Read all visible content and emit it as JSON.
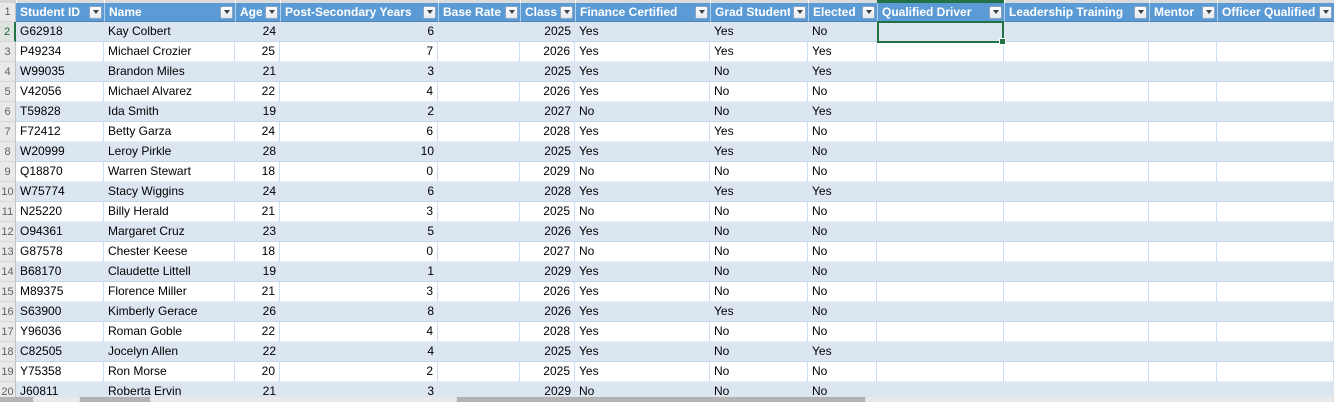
{
  "app": {
    "title": "Student roster spreadsheet"
  },
  "colors": {
    "header_bg": "#5B9BD5",
    "header_text": "#FFFFFF",
    "band_row_bg": "#DCE6F1",
    "white_row_bg": "#FFFFFF",
    "gridline": "#CBDEF2",
    "selection_green": "#217346",
    "gutter_bg": "#E9E9E9",
    "gutter_text": "#626262"
  },
  "header_row_num": "1",
  "columns": [
    {
      "id": "student-id",
      "label": "Student ID",
      "has_filter": true
    },
    {
      "id": "name",
      "label": "Name",
      "has_filter": true
    },
    {
      "id": "age",
      "label": "Age",
      "has_filter": true
    },
    {
      "id": "post-secondary-years",
      "label": "Post-Secondary Years",
      "has_filter": true
    },
    {
      "id": "base-rate",
      "label": "Base Rate",
      "has_filter": true
    },
    {
      "id": "class",
      "label": "Class",
      "has_filter": true
    },
    {
      "id": "finance-certified",
      "label": "Finance Certified",
      "has_filter": true
    },
    {
      "id": "grad-student",
      "label": "Grad Student",
      "has_filter": true
    },
    {
      "id": "elected",
      "label": "Elected",
      "has_filter": true
    },
    {
      "id": "qualified-driver",
      "label": "Qualified Driver",
      "has_filter": true
    },
    {
      "id": "leadership-training",
      "label": "Leadership Training",
      "has_filter": true
    },
    {
      "id": "mentor",
      "label": "Mentor",
      "has_filter": true
    },
    {
      "id": "officer-qualified",
      "label": "Officer Qualified",
      "has_filter": true
    }
  ],
  "rows": [
    {
      "num": "2",
      "cells": [
        "G62918",
        "Kay Colbert",
        "24",
        "6",
        "",
        "2025",
        "Yes",
        "Yes",
        "No",
        "",
        "",
        "",
        ""
      ]
    },
    {
      "num": "3",
      "cells": [
        "P49234",
        "Michael Crozier",
        "25",
        "7",
        "",
        "2026",
        "Yes",
        "Yes",
        "Yes",
        "",
        "",
        "",
        ""
      ]
    },
    {
      "num": "4",
      "cells": [
        "W99035",
        "Brandon Miles",
        "21",
        "3",
        "",
        "2025",
        "Yes",
        "No",
        "Yes",
        "",
        "",
        "",
        ""
      ]
    },
    {
      "num": "5",
      "cells": [
        "V42056",
        "Michael Alvarez",
        "22",
        "4",
        "",
        "2026",
        "Yes",
        "No",
        "No",
        "",
        "",
        "",
        ""
      ]
    },
    {
      "num": "6",
      "cells": [
        "T59828",
        "Ida Smith",
        "19",
        "2",
        "",
        "2027",
        "No",
        "No",
        "Yes",
        "",
        "",
        "",
        ""
      ]
    },
    {
      "num": "7",
      "cells": [
        "F72412",
        "Betty Garza",
        "24",
        "6",
        "",
        "2028",
        "Yes",
        "Yes",
        "No",
        "",
        "",
        "",
        ""
      ]
    },
    {
      "num": "8",
      "cells": [
        "W20999",
        "Leroy Pirkle",
        "28",
        "10",
        "",
        "2025",
        "Yes",
        "Yes",
        "No",
        "",
        "",
        "",
        ""
      ]
    },
    {
      "num": "9",
      "cells": [
        "Q18870",
        "Warren Stewart",
        "18",
        "0",
        "",
        "2029",
        "No",
        "No",
        "No",
        "",
        "",
        "",
        ""
      ]
    },
    {
      "num": "10",
      "cells": [
        "W75774",
        "Stacy Wiggins",
        "24",
        "6",
        "",
        "2028",
        "Yes",
        "Yes",
        "Yes",
        "",
        "",
        "",
        ""
      ]
    },
    {
      "num": "11",
      "cells": [
        "N25220",
        "Billy Herald",
        "21",
        "3",
        "",
        "2025",
        "No",
        "No",
        "No",
        "",
        "",
        "",
        ""
      ]
    },
    {
      "num": "12",
      "cells": [
        "O94361",
        "Margaret Cruz",
        "23",
        "5",
        "",
        "2026",
        "Yes",
        "No",
        "No",
        "",
        "",
        "",
        ""
      ]
    },
    {
      "num": "13",
      "cells": [
        "G87578",
        "Chester Keese",
        "18",
        "0",
        "",
        "2027",
        "No",
        "No",
        "No",
        "",
        "",
        "",
        ""
      ]
    },
    {
      "num": "14",
      "cells": [
        "B68170",
        "Claudette Littell",
        "19",
        "1",
        "",
        "2029",
        "Yes",
        "No",
        "No",
        "",
        "",
        "",
        ""
      ]
    },
    {
      "num": "15",
      "cells": [
        "M89375",
        "Florence Miller",
        "21",
        "3",
        "",
        "2026",
        "Yes",
        "No",
        "No",
        "",
        "",
        "",
        ""
      ]
    },
    {
      "num": "16",
      "cells": [
        "S63900",
        "Kimberly Gerace",
        "26",
        "8",
        "",
        "2026",
        "Yes",
        "Yes",
        "No",
        "",
        "",
        "",
        ""
      ]
    },
    {
      "num": "17",
      "cells": [
        "Y96036",
        "Roman Goble",
        "22",
        "4",
        "",
        "2028",
        "Yes",
        "No",
        "No",
        "",
        "",
        "",
        ""
      ]
    },
    {
      "num": "18",
      "cells": [
        "C82505",
        "Jocelyn Allen",
        "22",
        "4",
        "",
        "2025",
        "Yes",
        "No",
        "Yes",
        "",
        "",
        "",
        ""
      ]
    },
    {
      "num": "19",
      "cells": [
        "Y75358",
        "Ron Morse",
        "20",
        "2",
        "",
        "2025",
        "Yes",
        "No",
        "No",
        "",
        "",
        "",
        ""
      ]
    },
    {
      "num": "20",
      "cells": [
        "J60811",
        "Roberta Ervin",
        "21",
        "3",
        "",
        "2029",
        "No",
        "No",
        "No",
        "",
        "",
        "",
        ""
      ]
    }
  ],
  "selection": {
    "cell_ref_row": "2",
    "column_label": "Qualified Driver",
    "value": ""
  }
}
